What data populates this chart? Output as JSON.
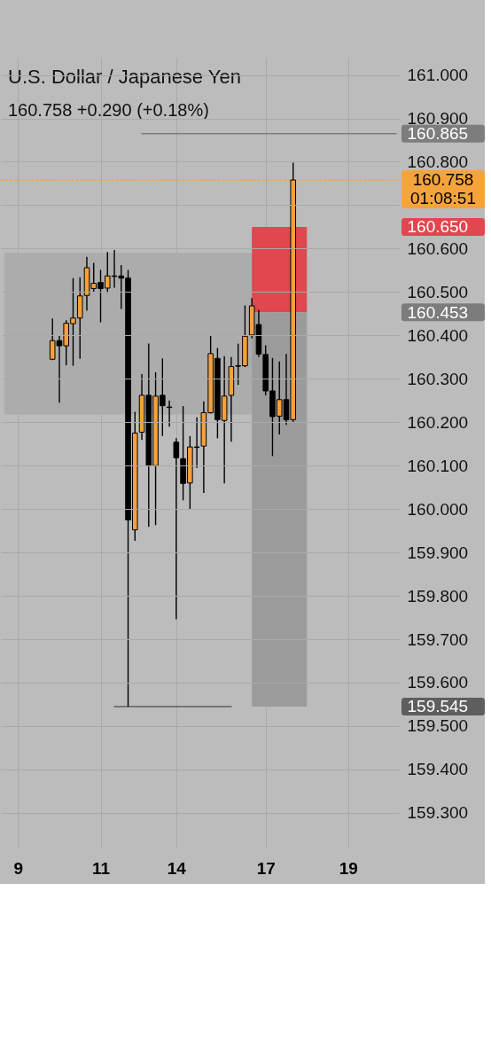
{
  "chart_data": {
    "type": "candlestick",
    "title": "U.S. Dollar / Japanese Yen",
    "subtitle": "160.758 +0.290 (+0.18%)",
    "categories": [
      null,
      null,
      "9",
      null,
      null,
      null,
      null,
      null,
      null,
      null,
      null,
      null,
      null,
      null,
      "11",
      null,
      null,
      null,
      null,
      null,
      null,
      null,
      null,
      null,
      null,
      "14",
      null,
      null,
      null,
      null,
      null,
      null,
      null,
      null,
      null,
      null,
      null,
      null,
      "17",
      null,
      null,
      null,
      null,
      null,
      null,
      null,
      null,
      null,
      null,
      null,
      "19",
      null,
      null,
      null,
      null,
      null,
      null,
      null
    ],
    "ohlc": [
      null,
      null,
      null,
      null,
      null,
      null,
      null,
      [
        160.345,
        160.439,
        160.343,
        160.388
      ],
      [
        160.388,
        160.399,
        160.245,
        160.376
      ],
      [
        160.376,
        160.435,
        160.331,
        160.428
      ],
      [
        160.427,
        160.532,
        160.33,
        160.44
      ],
      [
        160.44,
        160.534,
        160.346,
        160.491
      ],
      [
        160.492,
        160.581,
        160.457,
        160.556
      ],
      [
        160.508,
        160.567,
        160.5,
        160.52
      ],
      [
        160.522,
        160.551,
        160.43,
        160.508
      ],
      [
        160.509,
        160.592,
        160.498,
        160.537
      ],
      [
        160.537,
        160.597,
        160.51,
        160.536
      ],
      [
        160.537,
        160.562,
        160.461,
        160.532
      ],
      [
        160.532,
        160.551,
        159.545,
        159.975
      ],
      [
        159.952,
        160.224,
        159.927,
        160.175
      ],
      [
        160.177,
        160.311,
        160.159,
        160.262
      ],
      [
        160.262,
        160.381,
        159.959,
        160.1
      ],
      [
        160.1,
        160.315,
        159.963,
        160.26
      ],
      [
        160.262,
        160.347,
        160.168,
        160.238
      ],
      [
        160.235,
        160.25,
        160.19,
        160.234
      ],
      [
        160.154,
        160.163,
        159.746,
        160.118
      ],
      [
        160.116,
        160.237,
        160.02,
        160.059
      ],
      [
        160.06,
        160.168,
        159.999,
        160.143
      ],
      [
        160.143,
        160.211,
        160.095,
        160.142
      ],
      [
        160.145,
        160.248,
        160.037,
        160.222
      ],
      [
        160.222,
        160.399,
        160.22,
        160.358
      ],
      [
        160.347,
        160.371,
        160.163,
        160.206
      ],
      [
        160.204,
        160.352,
        160.059,
        160.26
      ],
      [
        160.262,
        160.35,
        160.155,
        160.328
      ],
      [
        160.33,
        160.381,
        160.286,
        160.329
      ],
      [
        160.33,
        160.469,
        160.327,
        160.398
      ],
      [
        160.401,
        160.486,
        160.393,
        160.468
      ],
      [
        160.425,
        160.459,
        160.35,
        160.357
      ],
      [
        160.356,
        160.377,
        160.262,
        160.272
      ],
      [
        160.272,
        160.348,
        160.122,
        160.213
      ],
      [
        160.214,
        160.34,
        160.172,
        160.252
      ],
      [
        160.252,
        160.357,
        160.194,
        160.206
      ],
      [
        160.206,
        160.798,
        160.201,
        160.758
      ],
      null,
      null,
      null,
      null,
      null,
      null,
      null,
      null,
      null,
      null,
      null,
      null,
      null,
      null,
      null
    ],
    "colors": [
      null,
      null,
      null,
      null,
      null,
      null,
      null,
      "#f6a03a",
      "#000000",
      "#f6a03a",
      "#f6a03a",
      "#f6a03a",
      "#f6a03a",
      "#f6a03a",
      "#000000",
      "#f6a03a",
      "#000000",
      "#000000",
      "#000000",
      "#f6a03a",
      "#f6a03a",
      "#000000",
      "#f6a03a",
      "#000000",
      "#000000",
      "#000000",
      "#000000",
      "#f6a03a",
      "#000000",
      "#f6a03a",
      "#f6a03a",
      "#000000",
      "#f6a03a",
      "#f6a03a",
      "#000000",
      "#f6a03a",
      "#f6a03a",
      "#000000",
      "#000000",
      "#000000",
      "#f6a03a",
      "#000000",
      "#f6a03a",
      null,
      null,
      null,
      null,
      null,
      null,
      null,
      null,
      null,
      null,
      null,
      null,
      null,
      null,
      null
    ],
    "series": [
      {
        "type": "line",
        "color": "#acacac",
        "values": [
          null,
          null,
          null,
          null,
          null,
          null,
          null,
          null,
          null,
          null,
          null,
          null,
          null,
          null,
          null,
          null,
          null,
          null,
          null,
          null,
          null,
          null,
          null,
          null,
          null,
          null,
          null,
          null,
          null,
          null,
          null,
          null,
          null,
          null,
          null,
          null,
          null,
          null,
          null,
          null,
          null,
          null,
          null,
          null,
          null,
          null,
          null,
          null,
          null,
          null,
          null,
          null,
          null,
          null,
          null,
          null,
          null,
          null
        ],
        "lower": [
          160.218,
          160.218,
          160.218,
          160.218,
          160.218,
          160.218,
          160.218,
          160.218,
          160.218,
          160.218,
          160.218,
          160.218,
          160.218,
          160.218,
          160.218,
          160.218,
          160.218,
          160.218,
          160.218,
          160.218,
          160.218,
          160.218,
          160.218,
          160.218,
          160.218,
          160.218,
          160.218,
          160.218,
          160.218,
          160.218,
          160.218,
          160.218,
          160.218,
          160.218,
          160.218,
          160.218,
          160.218,
          null,
          null,
          null,
          null,
          null,
          null,
          null,
          null,
          null,
          null,
          null,
          null,
          null,
          null,
          null,
          null,
          null,
          null,
          null,
          null,
          null
        ],
        "upper": [
          160.59,
          160.59,
          160.59,
          160.59,
          160.59,
          160.59,
          160.59,
          160.59,
          160.59,
          160.59,
          160.59,
          160.59,
          160.59,
          160.59,
          160.59,
          160.59,
          160.59,
          160.59,
          160.59,
          160.59,
          160.59,
          160.59,
          160.59,
          160.59,
          160.59,
          160.59,
          160.59,
          160.59,
          160.59,
          160.59,
          160.59,
          160.59,
          160.59,
          160.59,
          160.59,
          160.59,
          160.59,
          null,
          null,
          null,
          null,
          null,
          null,
          null,
          null,
          null,
          null,
          null,
          null,
          null,
          null,
          null,
          null,
          null,
          null,
          null,
          null,
          null
        ]
      },
      {
        "type": "line",
        "color": "#e0474f",
        "values": [
          null,
          null,
          null,
          null,
          null,
          null,
          null,
          null,
          null,
          null,
          null,
          null,
          null,
          null,
          null,
          null,
          null,
          null,
          null,
          null,
          null,
          null,
          null,
          null,
          null,
          null,
          null,
          null,
          null,
          null,
          null,
          null,
          null,
          null,
          null,
          null,
          null,
          null,
          null,
          null,
          null,
          null,
          null,
          null,
          null,
          null,
          null,
          null,
          null,
          null,
          null,
          null,
          null,
          null,
          null,
          null,
          null,
          null
        ],
        "lower": [
          null,
          null,
          null,
          null,
          null,
          null,
          null,
          null,
          null,
          null,
          null,
          null,
          null,
          null,
          null,
          null,
          null,
          null,
          null,
          null,
          null,
          null,
          null,
          null,
          null,
          null,
          null,
          null,
          null,
          null,
          null,
          null,
          null,
          null,
          null,
          null,
          160.453,
          160.453,
          160.453,
          160.453,
          160.453,
          160.453,
          160.453,
          160.453,
          160.453,
          null,
          null,
          null,
          null,
          null,
          null,
          null,
          null,
          null,
          null,
          null,
          null,
          null
        ],
        "upper": [
          null,
          null,
          null,
          null,
          null,
          null,
          null,
          null,
          null,
          null,
          null,
          null,
          null,
          null,
          null,
          null,
          null,
          null,
          null,
          null,
          null,
          null,
          null,
          null,
          null,
          null,
          null,
          null,
          null,
          null,
          null,
          null,
          null,
          null,
          null,
          null,
          160.65,
          160.65,
          160.65,
          160.65,
          160.65,
          160.65,
          160.65,
          160.65,
          160.65,
          null,
          null,
          null,
          null,
          null,
          null,
          null,
          null,
          null,
          null,
          null,
          null,
          null
        ]
      },
      {
        "type": "line",
        "color": "#9b9b9b",
        "values": [
          null,
          null,
          null,
          null,
          null,
          null,
          null,
          null,
          null,
          null,
          null,
          null,
          null,
          null,
          null,
          null,
          null,
          null,
          null,
          null,
          null,
          null,
          null,
          null,
          null,
          null,
          null,
          null,
          null,
          null,
          null,
          null,
          null,
          null,
          null,
          null,
          null,
          null,
          null,
          null,
          null,
          null,
          null,
          null,
          null,
          null,
          null,
          null,
          null,
          null,
          null,
          null,
          null,
          null,
          null,
          null,
          null,
          null
        ],
        "lower": [
          null,
          null,
          null,
          null,
          null,
          null,
          null,
          null,
          null,
          null,
          null,
          null,
          null,
          null,
          null,
          null,
          null,
          null,
          null,
          null,
          null,
          null,
          null,
          null,
          null,
          null,
          null,
          null,
          null,
          null,
          null,
          null,
          null,
          null,
          null,
          null,
          159.545,
          159.545,
          159.545,
          159.545,
          159.545,
          159.545,
          159.545,
          159.545,
          159.545,
          null,
          null,
          null,
          null,
          null,
          null,
          null,
          null,
          null,
          null,
          null,
          null,
          null
        ],
        "upper": [
          null,
          null,
          null,
          null,
          null,
          null,
          null,
          null,
          null,
          null,
          null,
          null,
          null,
          null,
          null,
          null,
          null,
          null,
          null,
          null,
          null,
          null,
          null,
          null,
          null,
          null,
          null,
          null,
          null,
          null,
          null,
          null,
          null,
          null,
          null,
          null,
          160.453,
          160.453,
          160.453,
          160.453,
          160.453,
          160.453,
          160.453,
          160.453,
          160.453,
          null,
          null,
          null,
          null,
          null,
          null,
          null,
          null,
          null,
          null,
          null,
          null,
          null
        ]
      },
      {
        "type": "line",
        "color": "#7d7d7d",
        "values": [
          null,
          null,
          null,
          null,
          null,
          null,
          null,
          null,
          null,
          null,
          null,
          null,
          null,
          null,
          null,
          null,
          null,
          null,
          null,
          null,
          160.865,
          160.865,
          160.865,
          160.865,
          160.865,
          160.865,
          160.865,
          160.865,
          160.865,
          160.865,
          160.865,
          160.865,
          160.865,
          160.865,
          160.865,
          160.865,
          160.865,
          160.865,
          160.865,
          160.865,
          160.865,
          160.865,
          160.865,
          160.865,
          160.865,
          160.865,
          160.865,
          160.865,
          160.865,
          160.865,
          160.865,
          160.865,
          160.865,
          160.865,
          160.865,
          160.865,
          160.865,
          160.865
        ]
      },
      {
        "type": "line",
        "color": "#5e5e5e",
        "values": [
          null,
          null,
          null,
          null,
          null,
          null,
          null,
          null,
          null,
          null,
          null,
          null,
          null,
          null,
          null,
          null,
          159.545,
          159.545,
          159.545,
          159.545,
          159.545,
          159.545,
          159.545,
          159.545,
          159.545,
          159.545,
          159.545,
          159.545,
          159.545,
          159.545,
          159.545,
          159.545,
          159.545,
          159.545,
          null,
          null,
          null,
          null,
          null,
          null,
          null,
          null,
          null,
          null,
          null,
          null,
          null,
          null,
          null,
          null,
          null,
          null,
          null,
          null,
          null,
          null,
          null,
          null
        ]
      }
    ],
    "ylim": [
      159.22,
      161.04
    ],
    "yticks": [
      {
        "value": 159.3,
        "label": "159.300"
      },
      {
        "value": 159.4,
        "label": "159.400"
      },
      {
        "value": 159.5,
        "label": "159.500"
      },
      {
        "value": 159.545,
        "label": "159.545"
      },
      {
        "value": 159.6,
        "label": "159.600"
      },
      {
        "value": 159.7,
        "label": "159.700"
      },
      {
        "value": 159.8,
        "label": "159.800"
      },
      {
        "value": 159.9,
        "label": "159.900"
      },
      {
        "value": 160.0,
        "label": "160.000"
      },
      {
        "value": 160.1,
        "label": "160.100"
      },
      {
        "value": 160.2,
        "label": "160.200"
      },
      {
        "value": 160.3,
        "label": "160.300"
      },
      {
        "value": 160.4,
        "label": "160.400"
      },
      {
        "value": 160.453,
        "label": "160.453"
      },
      {
        "value": 160.5,
        "label": "160.500"
      },
      {
        "value": 160.6,
        "label": "160.600"
      },
      {
        "value": 160.65,
        "label": "160.650"
      },
      {
        "value": 160.7,
        "label": null
      },
      {
        "value": 160.8,
        "label": "160.800"
      },
      {
        "value": 160.865,
        "label": "160.865"
      },
      {
        "value": 160.9,
        "label": "160.900"
      },
      {
        "value": 161.0,
        "label": "161.000"
      }
    ],
    "grid": true,
    "ref_lines": [
      {
        "axis": "y",
        "value": 160.758,
        "label": "160.758\n01:08:51",
        "color": "#f5a43b",
        "line_style": "dotted"
      }
    ]
  }
}
